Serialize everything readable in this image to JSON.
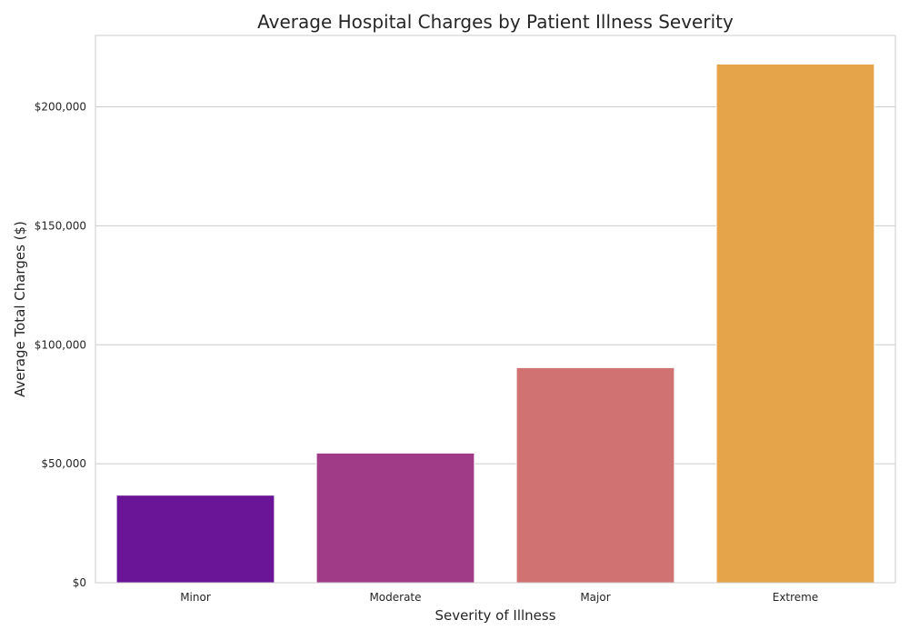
{
  "chart_data": {
    "type": "bar",
    "title": "Average Hospital Charges by Patient Illness Severity",
    "xlabel": "Severity of Illness",
    "ylabel": "Average Total Charges ($)",
    "categories": [
      "Minor",
      "Moderate",
      "Major",
      "Extreme"
    ],
    "values": [
      36800,
      54500,
      90400,
      218000
    ],
    "colors": [
      "#6a1497",
      "#a03b87",
      "#d17272",
      "#e5a44a"
    ],
    "ylim": [
      0,
      230000
    ],
    "yticks": [
      0,
      50000,
      100000,
      150000,
      200000
    ],
    "ytick_labels": [
      "$0",
      "$50,000",
      "$100,000",
      "$150,000",
      "$200,000"
    ],
    "grid": "horizontal",
    "legend": "none"
  }
}
